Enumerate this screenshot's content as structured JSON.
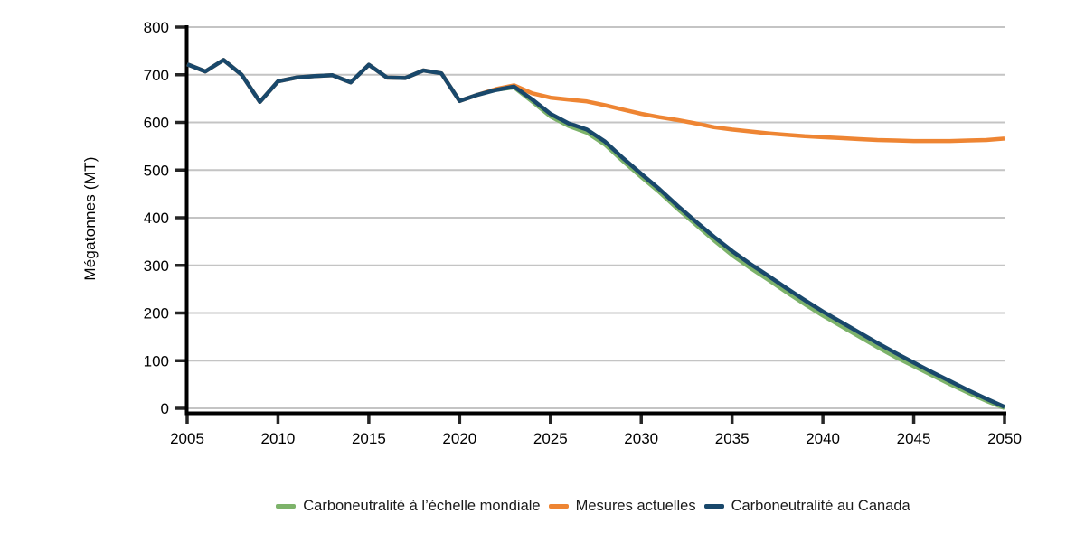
{
  "page": {
    "background_color": "#ffffff"
  },
  "chart_data": {
    "type": "line",
    "title": "",
    "xlabel": "",
    "ylabel": "Mégatonnes (MT)",
    "x_start": 2005,
    "x_end": 2050,
    "x_tick_step": 5,
    "x_tick_labels": [
      "2005",
      "2010",
      "2015",
      "2020",
      "2025",
      "2030",
      "2035",
      "2040",
      "2045",
      "2050"
    ],
    "ylim": [
      0,
      800
    ],
    "y_tick_step": 100,
    "y_tick_labels": [
      "0",
      "100",
      "200",
      "300",
      "400",
      "500",
      "600",
      "700",
      "800"
    ],
    "grid": "horizontal",
    "legend_position": "bottom",
    "x": [
      2005,
      2006,
      2007,
      2008,
      2009,
      2010,
      2011,
      2012,
      2013,
      2014,
      2015,
      2016,
      2017,
      2018,
      2019,
      2020,
      2021,
      2022,
      2023,
      2024,
      2025,
      2026,
      2027,
      2028,
      2029,
      2030,
      2031,
      2032,
      2033,
      2034,
      2035,
      2036,
      2037,
      2038,
      2039,
      2040,
      2041,
      2042,
      2043,
      2044,
      2045,
      2046,
      2047,
      2048,
      2049,
      2050
    ],
    "series": [
      {
        "name": "Carboneutralité à l’échelle mondiale",
        "color": "#7DB36A",
        "line_width": 4,
        "values": [
          722,
          707,
          731,
          700,
          643,
          686,
          694,
          697,
          699,
          684,
          721,
          694,
          693,
          709,
          703,
          645,
          658,
          668,
          673,
          643,
          612,
          592,
          578,
          553,
          518,
          485,
          453,
          418,
          385,
          352,
          321,
          294,
          269,
          243,
          218,
          194,
          172,
          150,
          128,
          107,
          88,
          69,
          50,
          32,
          15,
          0
        ]
      },
      {
        "name": "Mesures actuelles",
        "color": "#EE8533",
        "line_width": 4.5,
        "values": [
          722,
          707,
          731,
          700,
          643,
          686,
          694,
          697,
          699,
          684,
          721,
          694,
          693,
          709,
          703,
          645,
          658,
          670,
          678,
          661,
          652,
          648,
          644,
          636,
          627,
          618,
          611,
          605,
          598,
          590,
          585,
          581,
          577,
          574,
          571,
          569,
          567,
          565,
          563,
          562,
          561,
          561,
          561,
          562,
          563,
          566
        ]
      },
      {
        "name": "Carboneutralité au Canada",
        "color": "#19486B",
        "line_width": 4.5,
        "values": [
          722,
          707,
          731,
          700,
          643,
          686,
          694,
          697,
          699,
          684,
          721,
          694,
          693,
          709,
          703,
          645,
          658,
          668,
          675,
          648,
          618,
          598,
          585,
          560,
          525,
          492,
          460,
          425,
          392,
          360,
          330,
          303,
          278,
          252,
          227,
          203,
          181,
          159,
          137,
          116,
          96,
          76,
          57,
          38,
          20,
          3
        ]
      }
    ],
    "colors": {
      "gridline": "#C4C4C4",
      "axis": "#000000",
      "tick": "#262626",
      "label": "#000000"
    }
  }
}
